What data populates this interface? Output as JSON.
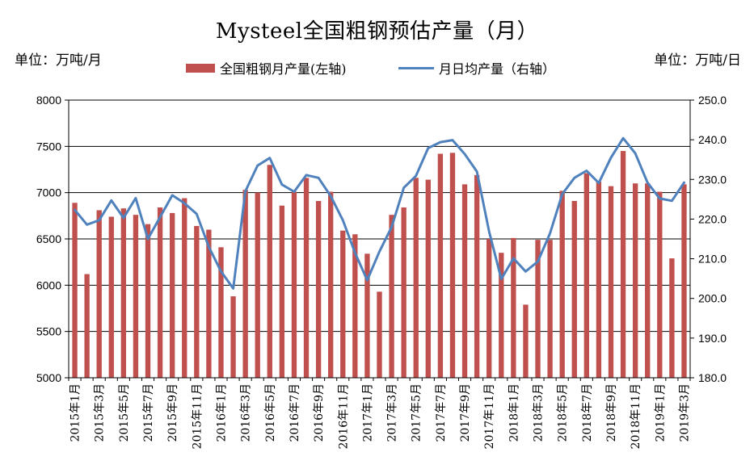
{
  "chart_data": {
    "type": "bar+line",
    "title": "Mysteel全国粗钢预估产量（月）",
    "unit_left": "单位：万吨/月",
    "unit_right": "单位：万吨/日",
    "legend": [
      {
        "name": "全国粗钢月产量(左轴)",
        "type": "bar",
        "color": "#C0504D"
      },
      {
        "name": "月日均产量（右轴）",
        "type": "line",
        "color": "#4F81BD"
      }
    ],
    "categories": [
      "2015年1月",
      "2015年2月",
      "2015年3月",
      "2015年4月",
      "2015年5月",
      "2015年6月",
      "2015年7月",
      "2015年8月",
      "2015年9月",
      "2015年10月",
      "2015年11月",
      "2015年12月",
      "2016年1月",
      "2016年2月",
      "2016年3月",
      "2016年4月",
      "2016年5月",
      "2016年6月",
      "2016年7月",
      "2016年8月",
      "2016年9月",
      "2016年10月",
      "2016年11月",
      "2016年12月",
      "2017年1月",
      "2017年2月",
      "2017年3月",
      "2017年4月",
      "2017年5月",
      "2017年6月",
      "2017年7月",
      "2017年8月",
      "2017年9月",
      "2017年10月",
      "2017年11月",
      "2017年12月",
      "2018年1月",
      "2018年2月",
      "2018年3月",
      "2018年4月",
      "2018年5月",
      "2018年6月",
      "2018年7月",
      "2018年8月",
      "2018年9月",
      "2018年10月",
      "2018年11月",
      "2018年12月",
      "2019年1月",
      "2019年2月",
      "2019年3月"
    ],
    "x_tick_labels": [
      "2015年1月",
      "2015年3月",
      "2015年5月",
      "2015年7月",
      "2015年9月",
      "2015年11月",
      "2016年1月",
      "2016年3月",
      "2016年5月",
      "2016年7月",
      "2016年9月",
      "2016年11月",
      "2017年1月",
      "2017年3月",
      "2017年5月",
      "2017年7月",
      "2017年9月",
      "2017年11月",
      "2018年1月",
      "2018年3月",
      "2018年5月",
      "2018年7月",
      "2018年9月",
      "2018年11月",
      "2019年1月",
      "2019年3月"
    ],
    "y_left": {
      "min": 5000,
      "max": 8000,
      "ticks": [
        "5000",
        "5500",
        "6000",
        "6500",
        "7000",
        "7500",
        "8000"
      ]
    },
    "y_right": {
      "min": 180,
      "max": 250,
      "ticks": [
        "180.0",
        "190.0",
        "200.0",
        "210.0",
        "220.0",
        "230.0",
        "240.0",
        "250.0"
      ]
    },
    "series": [
      {
        "name": "全国粗钢月产量(左轴)",
        "axis": "left",
        "values": [
          6890,
          6120,
          6810,
          6740,
          6830,
          6760,
          6660,
          6840,
          6780,
          6940,
          6640,
          6600,
          6410,
          5880,
          7030,
          7000,
          7300,
          6860,
          7010,
          7160,
          6910,
          7010,
          6590,
          6550,
          6340,
          5930,
          6760,
          6840,
          7160,
          7140,
          7420,
          7430,
          7090,
          7190,
          6500,
          6350,
          6510,
          5790,
          6490,
          6490,
          7020,
          6910,
          7210,
          7120,
          7070,
          7450,
          7100,
          7100,
          7010,
          6290,
          7090
        ]
      },
      {
        "name": "月日均产量（右轴）",
        "axis": "right",
        "values": [
          222.3,
          218.6,
          219.7,
          224.7,
          220.3,
          225.3,
          215.0,
          220.5,
          226.0,
          224.0,
          221.3,
          213.0,
          206.8,
          202.5,
          227.0,
          233.5,
          235.4,
          228.7,
          226.9,
          231.1,
          230.4,
          225.8,
          219.7,
          211.5,
          204.6,
          211.8,
          218.0,
          227.9,
          230.9,
          237.9,
          239.4,
          239.9,
          236.4,
          232.0,
          216.9,
          204.9,
          210.1,
          206.8,
          209.3,
          216.4,
          226.3,
          230.4,
          232.2,
          229.1,
          235.5,
          240.4,
          236.6,
          229.2,
          225.2,
          224.6,
          229.2
        ]
      }
    ]
  }
}
